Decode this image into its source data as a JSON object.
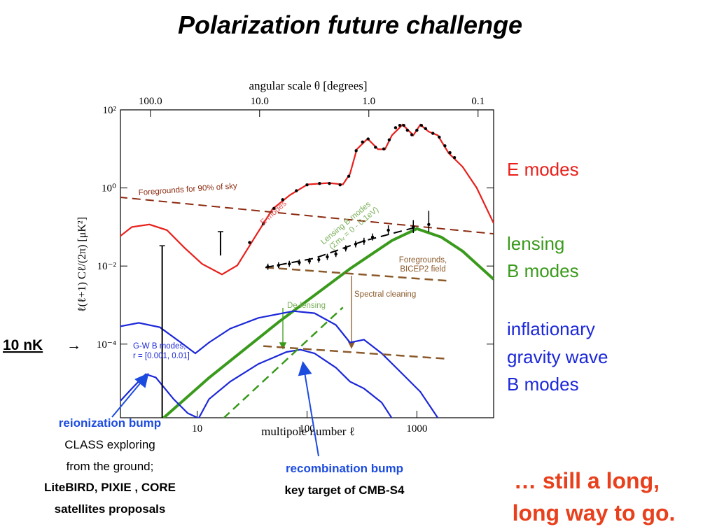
{
  "slide": {
    "title": "Polarization future challenge",
    "right_labels": [
      "E modes",
      "lensing",
      "B modes",
      "inflationary",
      "gravity wave",
      "B modes"
    ],
    "marker": "10 nK",
    "marker_arrow": "→",
    "reionization": [
      "reionization bump",
      "CLASS exploring",
      "from the ground;",
      "LiteBIRD, PIXIE , CORE",
      "satellites proposals"
    ],
    "recombination": [
      "recombination bump",
      "key target of CMB-S4"
    ],
    "conclusion": [
      "… still a long,",
      "long way to go."
    ]
  },
  "chart_data": {
    "type": "line",
    "x_label": "multipole number ℓ",
    "x2_label": "angular scale θ [degrees]",
    "y_label": "ℓ(ℓ+1) Cℓ/(2π) [μK²]",
    "log_x": true,
    "log_y": true,
    "xlim": [
      2,
      5000
    ],
    "xticks": [
      10,
      100,
      1000
    ],
    "x2lim": [
      188,
      0.072
    ],
    "x2ticks": [
      {
        "value": 100,
        "label": "100.0"
      },
      {
        "value": 10,
        "label": "10.0"
      },
      {
        "value": 1,
        "label": "1.0"
      },
      {
        "value": 0.1,
        "label": "0.1"
      }
    ],
    "ylim": [
      1.3e-06,
      100
    ],
    "yticks": [
      {
        "value": 100,
        "label": "10²"
      },
      {
        "value": 1,
        "label": "10⁰"
      },
      {
        "value": 0.01,
        "label": "10⁻²"
      },
      {
        "value": 0.0001,
        "label": "10⁻⁴"
      }
    ],
    "series": [
      {
        "color": "#e8201c",
        "width": 2.2,
        "dash": false,
        "x": [
          1.94,
          2.54,
          3.67,
          5.3,
          7.7,
          11.1,
          16.8,
          23.2,
          33.5,
          48.5,
          70,
          101,
          157,
          212,
          246,
          284,
          356,
          443,
          513,
          593,
          742,
          928,
          1075,
          1283,
          1550,
          1940,
          2610,
          3510,
          4990
        ],
        "values": [
          0.055,
          0.1,
          0.116,
          0.083,
          0.029,
          0.0113,
          0.0061,
          0.0104,
          0.055,
          0.288,
          0.66,
          1.23,
          1.34,
          1.23,
          2.29,
          9.8,
          18.3,
          9.8,
          9.8,
          22.4,
          41.8,
          22.4,
          41.8,
          27.6,
          22.4,
          7.9,
          3.47,
          1.0,
          0.126
        ]
      },
      {
        "color": "#3a9a1c",
        "width": 4,
        "dash": false,
        "x": [
          4.9,
          12.8,
          56,
          246,
          593,
          1000,
          1670,
          2610,
          4990
        ],
        "values": [
          1.26e-06,
          1.37e-05,
          0.00038,
          0.0085,
          0.045,
          0.09,
          0.055,
          0.024,
          0.0046
        ]
      },
      {
        "color": "#1c28d8",
        "width": 2.2,
        "dash": false,
        "x": [
          1.94,
          2.94,
          4.57,
          7.1,
          9.6,
          12.8,
          20,
          36.1,
          75.6,
          117,
          183,
          246,
          330,
          478,
          689,
          1075,
          1560
        ],
        "values": [
          0.00028,
          0.00035,
          0.00027,
          0.00011,
          5.8e-05,
          0.00011,
          0.00025,
          0.00047,
          0.0007,
          0.00062,
          0.00031,
          0.00011,
          0.00013,
          5.8e-05,
          2.1e-05,
          6e-06,
          1.26e-06
        ]
      },
      {
        "color": "#1c28d8",
        "width": 2.2,
        "dash": false,
        "x": [
          1.94,
          2.54,
          3.4,
          4.2,
          6.1,
          8.2,
          10.3,
          12.8,
          20,
          36.1,
          65,
          87,
          117,
          183,
          246,
          330,
          478,
          593
        ],
        "values": [
          3.2e-06,
          7.3e-06,
          1.7e-05,
          1.4e-05,
          3.9e-06,
          1.7e-06,
          1.26e-06,
          3.9e-06,
          1.1e-05,
          3.1e-05,
          6.3e-05,
          7.2e-05,
          5.8e-05,
          2.5e-05,
          1.1e-05,
          7.3e-06,
          3.2e-06,
          1.26e-06
        ]
      },
      {
        "color": "#8b2a10",
        "width": 2,
        "dash": true,
        "x": [
          1.94,
          4990
        ],
        "values": [
          0.58,
          0.067
        ]
      },
      {
        "color": "#8b5a2b",
        "width": 2.5,
        "dash": true,
        "x": [
          41.8,
          1890
        ],
        "values": [
          0.0092,
          0.0042
        ]
      },
      {
        "color": "#8b5a2b",
        "width": 2.5,
        "dash": true,
        "x": [
          40,
          1890
        ],
        "values": [
          8.9e-05,
          4.2e-05
        ]
      },
      {
        "color": "#3a9a1c",
        "width": 2.5,
        "dash": true,
        "x": [
          17.3,
          212
        ],
        "values": [
          1.26e-06,
          0.00087
        ]
      },
      {
        "color": "#000000",
        "width": 2,
        "dash": true,
        "x": [
          41.8,
          117,
          330,
          1000
        ],
        "values": [
          0.0092,
          0.0158,
          0.044,
          0.1
        ]
      }
    ],
    "points": [
      {
        "color": "#000000",
        "x": [
          30,
          40,
          50,
          60,
          80,
          100,
          130,
          160,
          200,
          240,
          280,
          320,
          360,
          420,
          500,
          560,
          640,
          700,
          760,
          820,
          900,
          1000,
          1100,
          1200,
          1400,
          1600,
          1800,
          2000,
          2200
        ],
        "values": [
          0.04,
          0.12,
          0.3,
          0.5,
          0.85,
          1.2,
          1.3,
          1.3,
          1.2,
          2.0,
          9,
          15,
          18,
          11,
          10,
          17,
          35,
          40,
          40,
          30,
          23,
          30,
          40,
          33,
          25,
          20,
          12,
          8,
          6
        ]
      },
      {
        "color": "#000000",
        "x": [
          44,
          55,
          69,
          85,
          105,
          128,
          153,
          183,
          225,
          277,
          330,
          395,
          550,
          928,
          1283
        ],
        "values": [
          0.0096,
          0.0104,
          0.0113,
          0.0123,
          0.0134,
          0.0146,
          0.0172,
          0.0203,
          0.0283,
          0.0364,
          0.043,
          0.055,
          0.083,
          0.1,
          0.116
        ],
        "low": [
          0.008,
          0.0088,
          0.0095,
          0.0103,
          0.0112,
          0.0122,
          0.0144,
          0.017,
          0.0236,
          0.03,
          0.035,
          0.045,
          0.065,
          0.07,
          0.075
        ],
        "high": [
          0.0115,
          0.0125,
          0.0136,
          0.0148,
          0.016,
          0.0175,
          0.0206,
          0.0243,
          0.034,
          0.044,
          0.053,
          0.068,
          0.11,
          0.15,
          0.26
        ]
      }
    ],
    "errorbars": {
      "color": "#000000",
      "x": [
        4.8,
        16.3
      ],
      "low": [
        1.3e-06,
        0.0186
      ],
      "high": [
        0.033,
        0.076
      ]
    },
    "annotations": [
      "Foregrounds for 90% of sky",
      "E modes",
      "Lensing B modes",
      "(Σmᵥ = 0 - 0.1eV)",
      "Foregrounds,",
      "BICEP2 field",
      "Spectral cleaning",
      "De-lensing",
      "G-W B modes,",
      "r = [0.001, 0.01]"
    ]
  }
}
